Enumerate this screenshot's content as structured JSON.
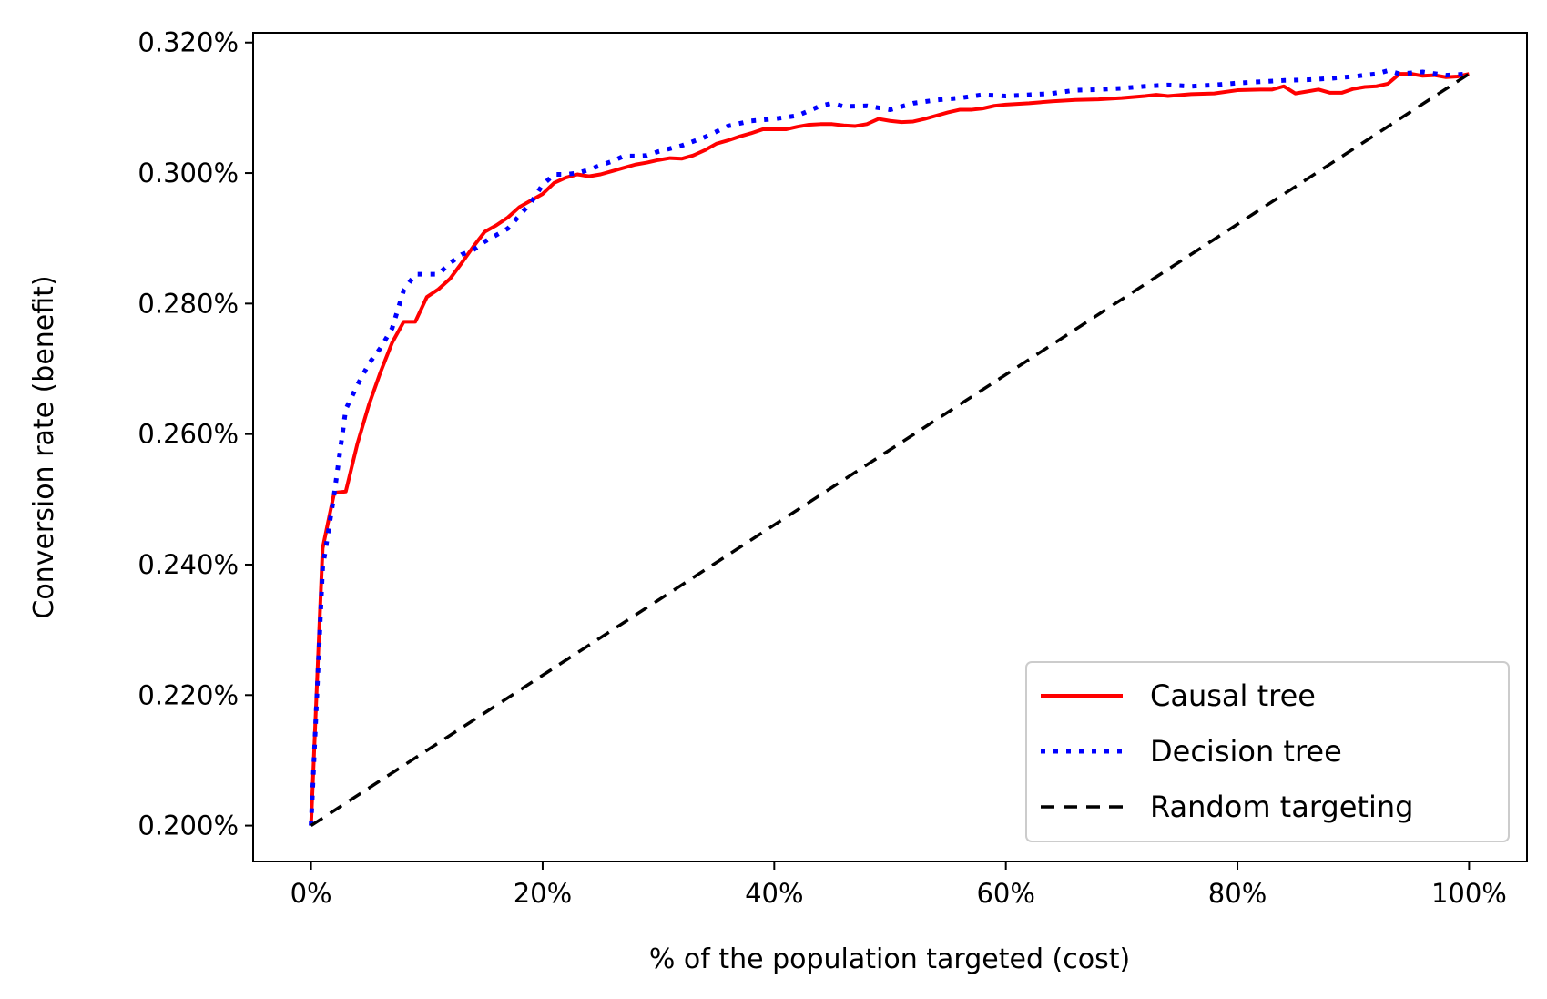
{
  "chart_data": {
    "type": "line",
    "title": "",
    "xlabel": "% of the population targeted (cost)",
    "ylabel": "Conversion rate (benefit)",
    "xlim": [
      -5,
      105
    ],
    "ylim": [
      0.1945,
      0.3215
    ],
    "xticks": [
      0,
      20,
      40,
      60,
      80,
      100
    ],
    "xtick_labels": [
      "0%",
      "20%",
      "40%",
      "60%",
      "80%",
      "100%"
    ],
    "yticks": [
      0.2,
      0.22,
      0.24,
      0.26,
      0.28,
      0.3,
      0.32
    ],
    "ytick_labels": [
      "0.200%",
      "0.220%",
      "0.240%",
      "0.260%",
      "0.280%",
      "0.300%",
      "0.320%"
    ],
    "grid": false,
    "legend_position": "lower-right",
    "series": [
      {
        "name": "Causal tree",
        "color": "#ff0000",
        "style": "solid",
        "x": [
          0,
          1,
          2,
          3,
          4,
          5,
          6,
          7,
          8,
          9,
          10,
          11,
          12,
          13,
          14,
          15,
          16,
          17,
          18,
          19,
          20,
          21,
          22,
          23,
          24,
          25,
          26,
          27,
          28,
          29,
          30,
          31,
          32,
          33,
          34,
          35,
          36,
          37,
          38,
          39,
          40,
          41,
          42,
          43,
          44,
          45,
          46,
          47,
          48,
          49,
          50,
          51,
          52,
          53,
          54,
          55,
          56,
          57,
          58,
          59,
          60,
          62,
          64,
          66,
          68,
          70,
          72,
          73,
          74,
          76,
          78,
          80,
          82,
          83,
          84,
          85,
          86,
          87,
          88,
          89,
          90,
          91,
          92,
          93,
          94,
          95,
          96,
          97,
          98,
          99,
          100
        ],
        "y": [
          0.2,
          0.2425,
          0.251,
          0.2512,
          0.2585,
          0.2645,
          0.2695,
          0.274,
          0.2772,
          0.2772,
          0.281,
          0.2822,
          0.2838,
          0.2862,
          0.2887,
          0.291,
          0.292,
          0.2932,
          0.2948,
          0.2958,
          0.2968,
          0.2985,
          0.2993,
          0.2998,
          0.2995,
          0.2998,
          0.3003,
          0.3008,
          0.3013,
          0.3016,
          0.302,
          0.3023,
          0.3022,
          0.3027,
          0.3035,
          0.3045,
          0.305,
          0.3056,
          0.3061,
          0.3067,
          0.3067,
          0.3067,
          0.3071,
          0.3074,
          0.3075,
          0.3075,
          0.3073,
          0.3072,
          0.3075,
          0.3083,
          0.308,
          0.3078,
          0.3079,
          0.3083,
          0.3088,
          0.3093,
          0.3097,
          0.3097,
          0.3099,
          0.3103,
          0.3105,
          0.3107,
          0.311,
          0.3112,
          0.3113,
          0.3115,
          0.3118,
          0.312,
          0.3118,
          0.3121,
          0.3122,
          0.3127,
          0.3128,
          0.3128,
          0.3133,
          0.3122,
          0.3125,
          0.3128,
          0.3123,
          0.3123,
          0.3129,
          0.3132,
          0.3133,
          0.3137,
          0.3152,
          0.3152,
          0.3149,
          0.315,
          0.3147,
          0.3148,
          0.3152
        ]
      },
      {
        "name": "Decision tree",
        "color": "#0000ff",
        "style": "dotted",
        "x": [
          0,
          1,
          2,
          3,
          4,
          5,
          6,
          7,
          8,
          9,
          10,
          11,
          12,
          13,
          14,
          15,
          16,
          17,
          18,
          19,
          20,
          21,
          22,
          23,
          24,
          25,
          26,
          27,
          28,
          29,
          30,
          32,
          34,
          36,
          38,
          40,
          42,
          44,
          45,
          46,
          48,
          50,
          52,
          54,
          56,
          58,
          60,
          62,
          64,
          66,
          68,
          70,
          72,
          74,
          76,
          78,
          80,
          82,
          84,
          86,
          88,
          90,
          92,
          93,
          94,
          96,
          98,
          100
        ],
        "y": [
          0.2,
          0.2395,
          0.2508,
          0.2638,
          0.2675,
          0.2708,
          0.2732,
          0.2762,
          0.282,
          0.2845,
          0.2845,
          0.2845,
          0.2862,
          0.2875,
          0.2882,
          0.2895,
          0.2905,
          0.2915,
          0.2935,
          0.2955,
          0.2982,
          0.2998,
          0.2998,
          0.3,
          0.3005,
          0.3012,
          0.3018,
          0.3026,
          0.3026,
          0.3027,
          0.3033,
          0.3042,
          0.3055,
          0.3072,
          0.308,
          0.3083,
          0.3088,
          0.3103,
          0.3107,
          0.3102,
          0.3103,
          0.3097,
          0.3107,
          0.3112,
          0.3115,
          0.312,
          0.3118,
          0.312,
          0.3122,
          0.3127,
          0.3128,
          0.313,
          0.3133,
          0.3135,
          0.3133,
          0.3135,
          0.3138,
          0.314,
          0.3142,
          0.3143,
          0.3145,
          0.3148,
          0.3152,
          0.3157,
          0.3152,
          0.3155,
          0.315,
          0.3152
        ]
      },
      {
        "name": "Random targeting",
        "color": "#000000",
        "style": "dashed",
        "x": [
          0,
          100
        ],
        "y": [
          0.2,
          0.3152
        ]
      }
    ]
  }
}
